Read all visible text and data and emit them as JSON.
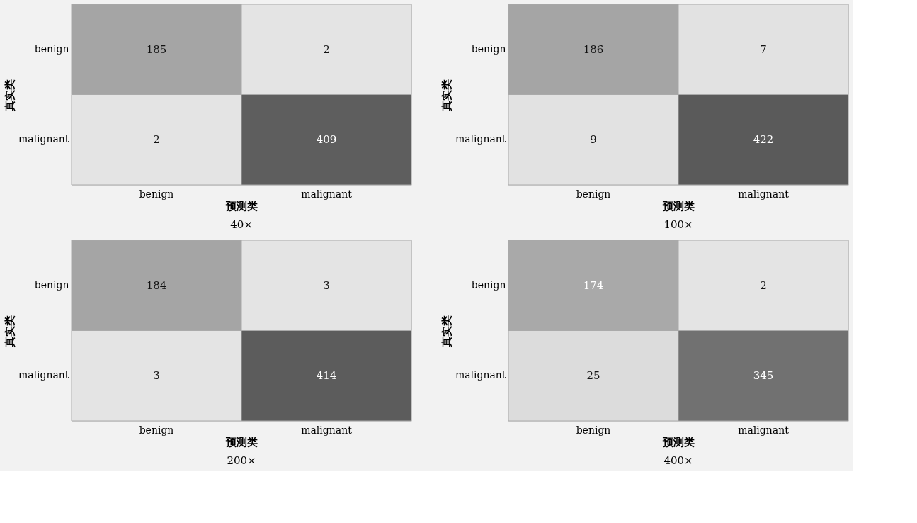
{
  "chart_data": [
    {
      "type": "heatmap",
      "xlabel": "预测类",
      "ylabel": "真实类",
      "categories": [
        "benign",
        "malignant"
      ],
      "y_categories": [
        "benign",
        "malignant"
      ],
      "cells": [
        [
          185,
          2
        ],
        [
          2,
          409
        ]
      ],
      "data_labels": true,
      "annotations": [
        "40×"
      ]
    },
    {
      "type": "heatmap",
      "xlabel": "预测类",
      "ylabel": "真实类",
      "categories": [
        "benign",
        "malignant"
      ],
      "y_categories": [
        "benign",
        "malignant"
      ],
      "cells": [
        [
          186,
          7
        ],
        [
          9,
          422
        ]
      ],
      "data_labels": true,
      "annotations": [
        "100×"
      ]
    },
    {
      "type": "heatmap",
      "xlabel": "预测类",
      "ylabel": "真实类",
      "categories": [
        "benign",
        "malignant"
      ],
      "y_categories": [
        "benign",
        "malignant"
      ],
      "cells": [
        [
          184,
          3
        ],
        [
          3,
          414
        ]
      ],
      "data_labels": true,
      "annotations": [
        "200×"
      ]
    },
    {
      "type": "heatmap",
      "xlabel": "预测类",
      "ylabel": "真实类",
      "categories": [
        "benign",
        "malignant"
      ],
      "y_categories": [
        "benign",
        "malignant"
      ],
      "cells": [
        [
          174,
          2
        ],
        [
          25,
          345
        ]
      ],
      "data_labels": true,
      "annotations": [
        "400×"
      ]
    }
  ]
}
